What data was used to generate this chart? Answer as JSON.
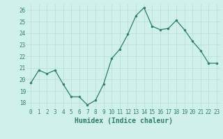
{
  "x": [
    0,
    1,
    2,
    3,
    4,
    5,
    6,
    7,
    8,
    9,
    10,
    11,
    12,
    13,
    14,
    15,
    16,
    17,
    18,
    19,
    20,
    21,
    22,
    23
  ],
  "y": [
    19.7,
    20.8,
    20.5,
    20.8,
    19.6,
    18.5,
    18.5,
    17.8,
    18.2,
    19.6,
    21.8,
    22.6,
    23.9,
    25.5,
    26.2,
    24.6,
    24.3,
    24.4,
    25.1,
    24.3,
    23.3,
    22.5,
    21.4,
    21.4
  ],
  "line_color": "#2e7d6e",
  "bg_color": "#cff0eb",
  "grid_color": "#b8ddd8",
  "xlabel": "Humidex (Indice chaleur)",
  "ylim": [
    17.5,
    26.5
  ],
  "xlim": [
    -0.5,
    23.5
  ],
  "yticks": [
    18,
    19,
    20,
    21,
    22,
    23,
    24,
    25,
    26
  ],
  "xticks": [
    0,
    1,
    2,
    3,
    4,
    5,
    6,
    7,
    8,
    9,
    10,
    11,
    12,
    13,
    14,
    15,
    16,
    17,
    18,
    19,
    20,
    21,
    22,
    23
  ],
  "tick_fontsize": 5.5,
  "xlabel_fontsize": 7.0,
  "marker": "o",
  "marker_size": 2.0,
  "line_width": 0.9
}
